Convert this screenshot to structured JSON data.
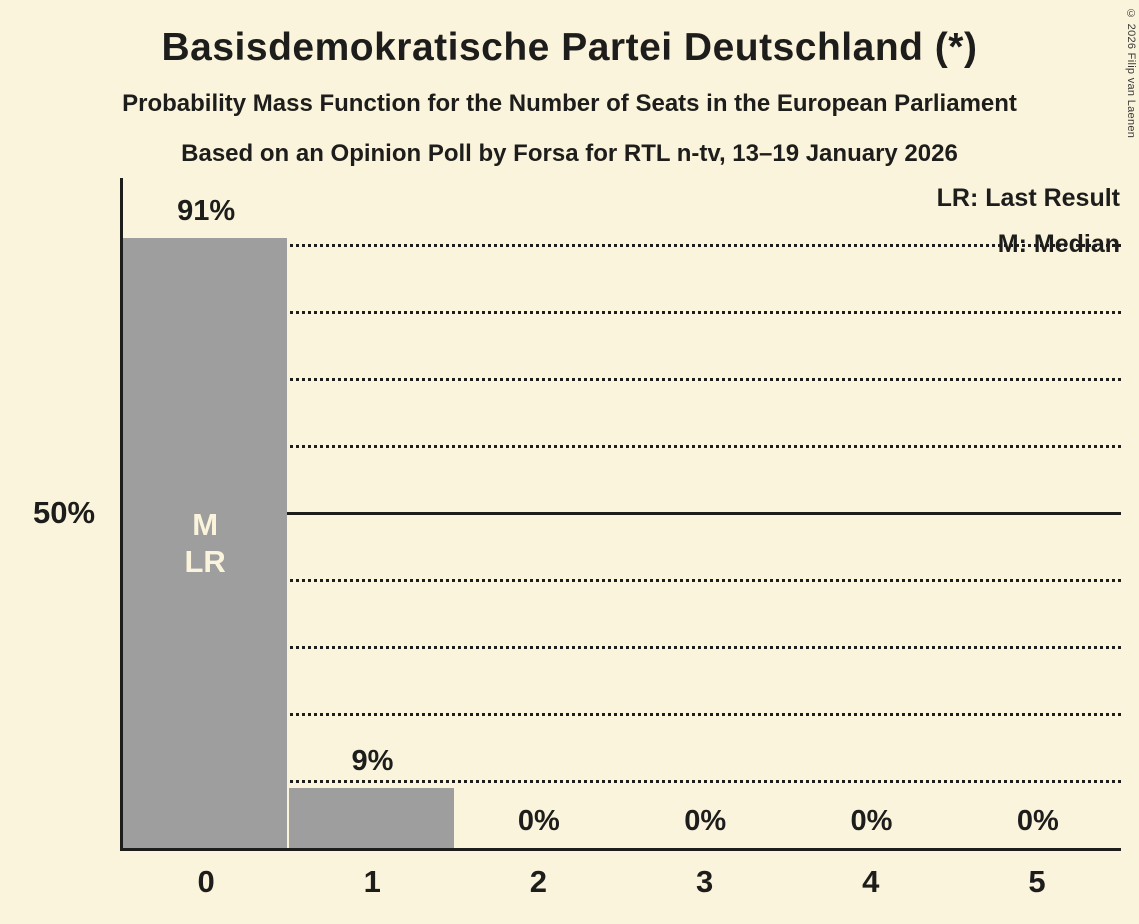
{
  "header": {
    "title": "Basisdemokratische Partei Deutschland (*)",
    "subtitle1": "Probability Mass Function for the Number of Seats in the European Parliament",
    "subtitle2": "Based on an Opinion Poll by Forsa for RTL n-tv, 13–19 January 2026"
  },
  "legend": {
    "lr": "LR: Last Result",
    "m": "M: Median"
  },
  "copyright": "© 2026 Filip van Laenen",
  "chart_data": {
    "type": "bar",
    "title": "Basisdemokratische Partei Deutschland (*)",
    "xlabel": "",
    "ylabel": "",
    "categories": [
      "0",
      "1",
      "2",
      "3",
      "4",
      "5"
    ],
    "values": [
      91,
      9,
      0,
      0,
      0,
      0
    ],
    "value_labels": [
      "91%",
      "9%",
      "0%",
      "0%",
      "0%",
      "0%"
    ],
    "bar_annotations": [
      [
        "M",
        "LR"
      ],
      [],
      [],
      [],
      [],
      []
    ],
    "ylim": [
      0,
      100
    ],
    "ytick_label": "50%",
    "gridlines_percent": [
      10,
      20,
      30,
      40,
      50,
      60,
      70,
      80,
      90
    ],
    "solid_line_percent": 50,
    "grid": true,
    "legend_position": "top-right",
    "colors": {
      "background": "#FBF4DC",
      "bar": "#9E9E9E",
      "text": "#1D1D1B",
      "bar_annotation": "#FBF4DC"
    }
  }
}
